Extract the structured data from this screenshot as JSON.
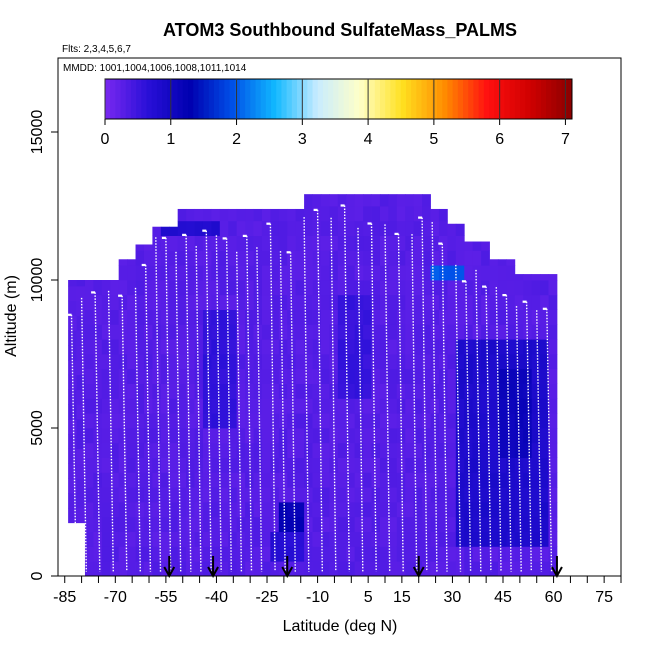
{
  "chart_data": {
    "type": "heatmap",
    "title": "ATOM3 Southbound SulfateMass_PALMS",
    "flights_label": "Flts: 2,3,4,5,6,7",
    "mmdd_label": "MMDD: 1001,1004,1006,1008,1011,1014",
    "xlabel": "Latitude (deg N)",
    "ylabel": "Altitude (m)",
    "xlim": [
      -87,
      80
    ],
    "ylim": [
      0,
      17500
    ],
    "x_ticks": [
      -85,
      -70,
      -55,
      -40,
      -25,
      -10,
      5,
      15,
      30,
      45,
      60,
      75
    ],
    "x_tick_labels": [
      "-85",
      "-70",
      "-55",
      "-40",
      "-25",
      "-10",
      "5",
      "15",
      "30",
      "45",
      "60",
      "75"
    ],
    "y_ticks": [
      0,
      5000,
      10000,
      15000
    ],
    "y_tick_labels": [
      "0",
      "5000",
      "10000",
      "15000"
    ],
    "colorbar": {
      "range": [
        0,
        7.1
      ],
      "ticks": [
        0,
        1,
        2,
        3,
        4,
        5,
        6,
        7
      ],
      "tick_labels": [
        "0",
        "1",
        "2",
        "3",
        "4",
        "5",
        "6",
        "7"
      ],
      "colors": [
        "#7a28f0",
        "#2a10d8",
        "#0000b0",
        "#0050e8",
        "#10b8ff",
        "#c8ecff",
        "#ffffc8",
        "#ffe020",
        "#ff8c00",
        "#ff1010",
        "#d00000",
        "#8a0000"
      ]
    },
    "background_value": 0.3,
    "domain_envelope": [
      {
        "x": [
          -84,
          -69
        ],
        "ytop": 10000
      },
      {
        "x": [
          -69,
          -64
        ],
        "ytop": 10700
      },
      {
        "x": [
          -64,
          -60
        ],
        "ytop": 11200
      },
      {
        "x": [
          -60,
          -52
        ],
        "ytop": 11800
      },
      {
        "x": [
          -52,
          -15
        ],
        "ytop": 12400
      },
      {
        "x": [
          -15,
          23
        ],
        "ytop": 12900
      },
      {
        "x": [
          23,
          28
        ],
        "ytop": 12400
      },
      {
        "x": [
          28,
          33
        ],
        "ytop": 11900
      },
      {
        "x": [
          33,
          40
        ],
        "ytop": 11300
      },
      {
        "x": [
          40,
          47
        ],
        "ytop": 10700
      },
      {
        "x": [
          47,
          59
        ],
        "ytop": 10200
      }
    ],
    "anomaly_patches": [
      {
        "lat": [
          -58,
          -40
        ],
        "alt": [
          11200,
          11900
        ],
        "value": 0.8
      },
      {
        "lat": [
          -45,
          -35
        ],
        "alt": [
          5000,
          8500
        ],
        "value": 0.6
      },
      {
        "lat": [
          -23,
          -15
        ],
        "alt": [
          1200,
          2000
        ],
        "value": 1.2
      },
      {
        "lat": [
          -25,
          -15
        ],
        "alt": [
          200,
          1000
        ],
        "value": 0.7
      },
      {
        "lat": [
          -5,
          5
        ],
        "alt": [
          6000,
          9000
        ],
        "value": 0.55
      },
      {
        "lat": [
          23,
          31
        ],
        "alt": [
          9600,
          10100
        ],
        "value": 2.0
      },
      {
        "lat": [
          30,
          58
        ],
        "alt": [
          1000,
          7500
        ],
        "value": 0.85
      },
      {
        "lat": [
          42,
          52
        ],
        "alt": [
          4000,
          6500
        ],
        "value": 1.1
      }
    ],
    "arrow_latitudes": [
      -54,
      -41,
      -19,
      20,
      61
    ]
  }
}
